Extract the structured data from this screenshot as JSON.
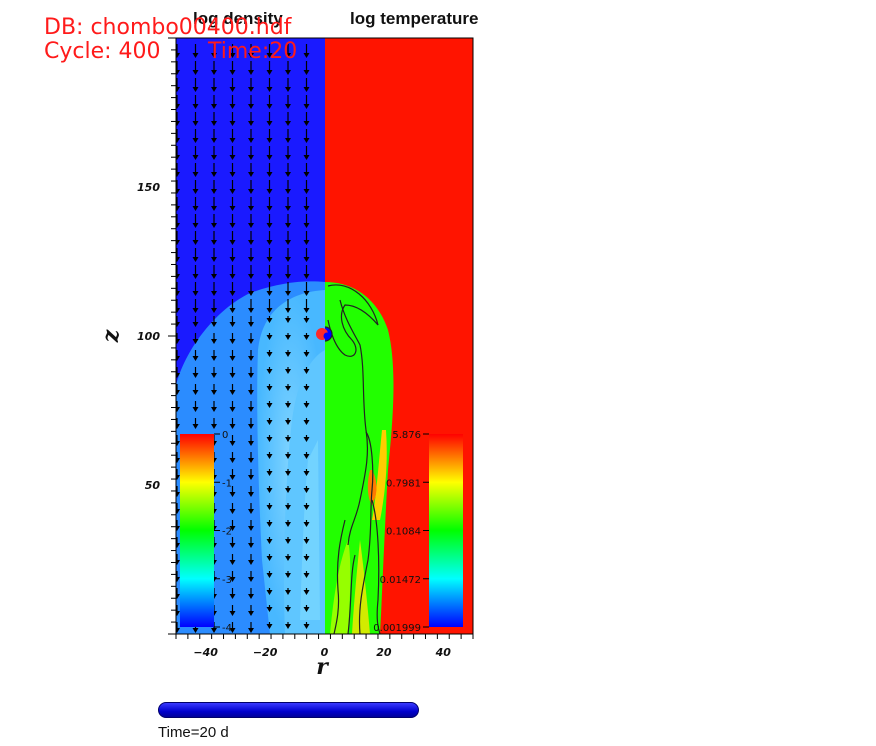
{
  "header": {
    "db_line": "DB: chombo00400.hdf",
    "cycle_line": "Cycle: 400",
    "time_inline": "Time:20"
  },
  "chart_data": {
    "type": "heatmap",
    "panels": [
      {
        "title": "log density",
        "side": "left",
        "colormap": "rainbow",
        "legend_ticks": [
          "0",
          "-1",
          "-2",
          "-3",
          "-4"
        ],
        "legend_range": [
          -4,
          0
        ]
      },
      {
        "title": "log temperature",
        "side": "right",
        "colormap": "rainbow",
        "legend_ticks": [
          "5.876",
          "0.7981",
          "0.1084",
          "0.01472",
          "0.001999"
        ]
      }
    ],
    "xlabel": "r",
    "ylabel": "z",
    "x_ticks": [
      -40,
      -20,
      0,
      20,
      40
    ],
    "y_ticks": [
      50,
      100,
      150
    ],
    "xlim": [
      -50,
      50
    ],
    "ylim": [
      0,
      200
    ],
    "bubble_top_z": 118,
    "vector_field": "velocity arrows pointing downward (-z) in left panel",
    "contours": "black temperature contours in right panel"
  },
  "footer": {
    "time_label": "Time=20 d",
    "time_progress": 1.0
  },
  "colors": {
    "bg_blue": "#1a1aff",
    "bg_red": "#ff1400",
    "label_red": "#ff1a1a"
  }
}
